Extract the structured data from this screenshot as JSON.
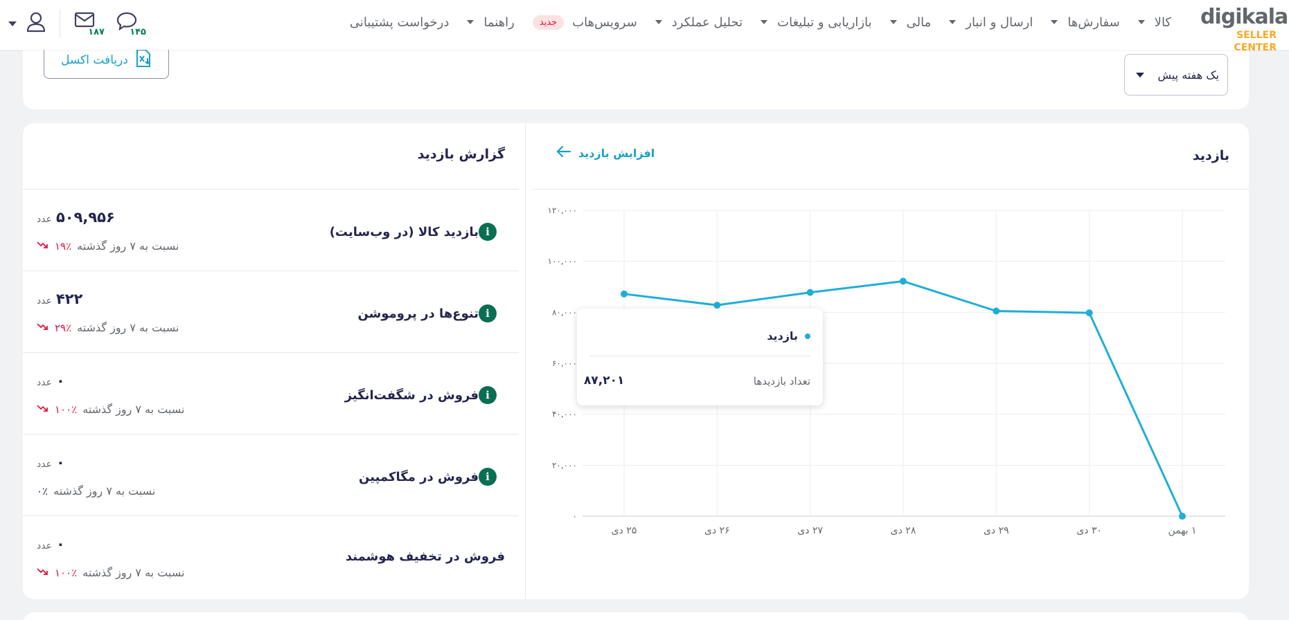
{
  "header": {
    "logo_main": "digikala",
    "logo_sub": "SELLER CENTER",
    "nav": [
      {
        "label": "کالا",
        "caret": true
      },
      {
        "label": "سفارش‌ها",
        "caret": true
      },
      {
        "label": "ارسال و انبار",
        "caret": true
      },
      {
        "label": "مالی",
        "caret": true
      },
      {
        "label": "بازاریابی و تبلیغات",
        "caret": true
      },
      {
        "label": "تحلیل عملکرد",
        "caret": true
      },
      {
        "label": "سرویس‌هاب",
        "badge": "جدید"
      },
      {
        "label": "راهنما",
        "caret": true
      },
      {
        "label": "درخواست پشتیبانی"
      }
    ],
    "messages_count": "۱۸۷",
    "tickets_count": "۱۴۵"
  },
  "toolbar": {
    "excel_label": "دریافت اکسل",
    "period_value": "یک هفته پیش"
  },
  "report": {
    "title": "گزارش بازدید",
    "compare_text": "نسبت به ۷ روز گذشته",
    "rows": [
      {
        "label": "بازدید کالا (در وب‌سایت)",
        "info": true,
        "value": "۵۰۹,۹۵۶",
        "unit": "عدد",
        "pct": "۱۹٪",
        "trend": "down"
      },
      {
        "label": "تنوع‌ها در پروموشن",
        "info": true,
        "value": "۴۲۲",
        "unit": "عدد",
        "pct": "۲۹٪",
        "trend": "down"
      },
      {
        "label": "فروش در شگفت‌انگیز",
        "info": true,
        "value": "۰",
        "unit": "عدد",
        "pct": "۱۰۰٪",
        "trend": "down"
      },
      {
        "label": "فروش در مگاکمپین",
        "info": true,
        "value": "۰",
        "unit": "عدد",
        "pct": "۰٪",
        "trend": "none"
      },
      {
        "label": "فروش در تخفیف هوشمند",
        "info": false,
        "value": "۰",
        "unit": "عدد",
        "pct": "۱۰۰٪",
        "trend": "down"
      }
    ]
  },
  "chart_panel": {
    "title": "بازدید",
    "link_label": "افزایش بازدید",
    "tooltip": {
      "series": "بازدید",
      "label": "تعداد بازدیدها",
      "value": "۸۷,۲۰۱"
    }
  },
  "chart_data": {
    "type": "line",
    "categories": [
      "۲۵ دی",
      "۲۶ دی",
      "۲۷ دی",
      "۲۸ دی",
      "۲۹ دی",
      "۳۰ دی",
      "۱ بهمن"
    ],
    "series": [
      {
        "name": "بازدید",
        "values": [
          87201,
          82800,
          87800,
          92200,
          80500,
          79800,
          0
        ]
      }
    ],
    "ylim": [
      0,
      120000
    ],
    "yticks": [
      "۰",
      "۲۰,۰۰۰",
      "۴۰,۰۰۰",
      "۶۰,۰۰۰",
      "۸۰,۰۰۰",
      "۱۰۰,۰۰۰",
      "۱۲۰,۰۰۰"
    ],
    "ytick_values": [
      0,
      20000,
      40000,
      60000,
      80000,
      100000,
      120000
    ],
    "grid": true,
    "color": "#1eaed8"
  }
}
